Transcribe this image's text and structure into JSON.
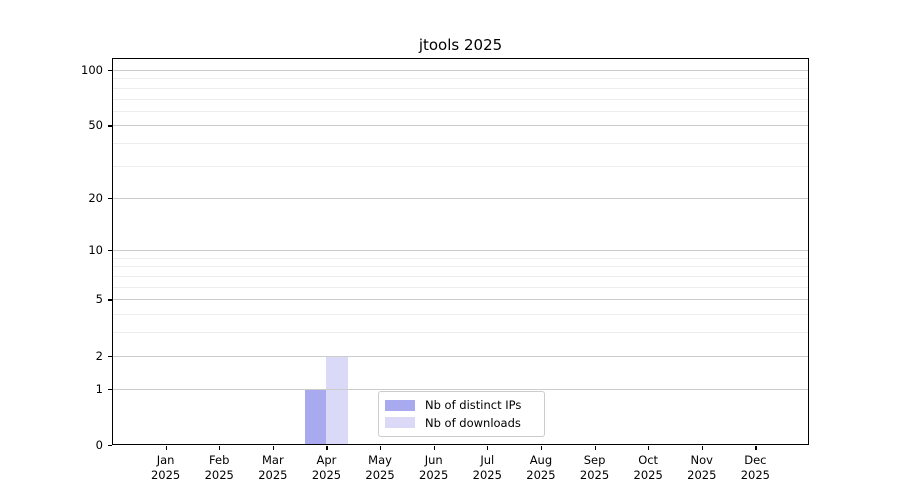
{
  "chart_data": {
    "type": "bar",
    "title": "jtools 2025",
    "year_label": "2025",
    "categories": [
      "Jan",
      "Feb",
      "Mar",
      "Apr",
      "May",
      "Jun",
      "Jul",
      "Aug",
      "Sep",
      "Oct",
      "Nov",
      "Dec"
    ],
    "series": [
      {
        "name": "Nb of distinct IPs",
        "color": "#a9a9f0",
        "values": [
          0,
          0,
          0,
          1,
          0,
          0,
          0,
          0,
          0,
          0,
          0,
          0
        ]
      },
      {
        "name": "Nb of downloads",
        "color": "#dadaf8",
        "values": [
          0,
          0,
          0,
          2,
          0,
          0,
          0,
          0,
          0,
          0,
          0,
          0
        ]
      }
    ],
    "yscale": "log1p",
    "ylim": [
      0,
      116
    ],
    "xlim": [
      -1,
      12
    ],
    "y_major_ticks": [
      0,
      1,
      2,
      5,
      10,
      20,
      50,
      100
    ],
    "y_minor_gridlines": [
      3,
      4,
      6,
      7,
      8,
      9,
      30,
      40,
      60,
      70,
      80,
      90
    ],
    "grid": true,
    "legend_position": "lower center",
    "xlabel": "",
    "ylabel": ""
  }
}
